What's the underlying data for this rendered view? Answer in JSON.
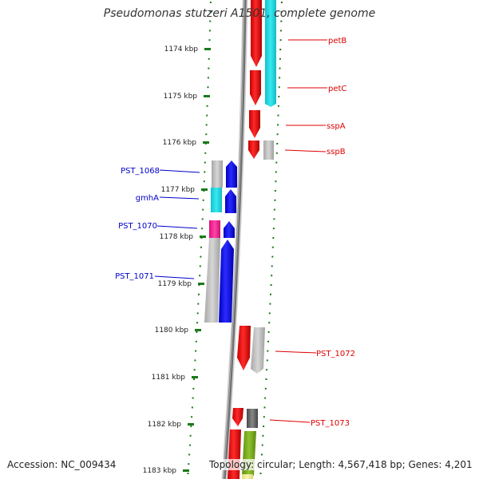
{
  "title": "Pseudomonas stutzeri A1501, complete genome",
  "accession_label": "Accession: NC_009434",
  "topology_label": "Topology: circular; Length: 4,567,418 bp; Genes: 4,201",
  "ruler": {
    "ticks": [
      {
        "label": "1174 kbp"
      },
      {
        "label": "1175 kbp"
      },
      {
        "label": "1176 kbp"
      },
      {
        "label": "1177 kbp"
      },
      {
        "label": "1178 kbp"
      },
      {
        "label": "1179 kbp"
      },
      {
        "label": "1180 kbp"
      },
      {
        "label": "1181 kbp"
      },
      {
        "label": "1182 kbp"
      },
      {
        "label": "1183 kbp"
      }
    ]
  },
  "genes_plus": [
    {
      "name": "petB",
      "color": "#e00000"
    },
    {
      "name": "petC",
      "color": "#e00000"
    },
    {
      "name": "sspA",
      "color": "#e00000"
    },
    {
      "name": "sspB",
      "color": "#e00000"
    },
    {
      "name": "PST_1072",
      "color": "#e00000"
    },
    {
      "name": "PST_1073",
      "color": "#e00000"
    }
  ],
  "genes_minus": [
    {
      "name": "PST_1068",
      "color": "#0000cc"
    },
    {
      "name": "gmhA",
      "color": "#0000cc"
    },
    {
      "name": "PST_1070",
      "color": "#0000cc"
    },
    {
      "name": "PST_1071",
      "color": "#0000cc"
    }
  ],
  "colors": {
    "plus_strand": "#e00000",
    "minus_strand": "#0000dd",
    "tick": "#1a7a1a",
    "backbone": "#777777",
    "cog_cyan": "#22d3dd",
    "cog_gray": "#b8b8b8",
    "cog_pink": "#ee2288",
    "cog_olive": "#77aa22",
    "cog_dark": "#666666",
    "cog_yellow": "#eeee99"
  }
}
